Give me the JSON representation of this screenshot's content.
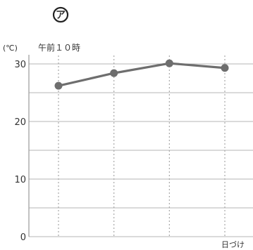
{
  "chart_data": {
    "type": "line",
    "panel_marker": "ア",
    "ylabel": "(℃)",
    "series_label": "午前１０時",
    "xlabel": "日づけ",
    "ylim": [
      0,
      30
    ],
    "y_ticks": [
      0,
      10,
      20,
      30
    ],
    "gridlines_every": 5,
    "grid": true,
    "x": [
      1,
      2,
      3,
      4
    ],
    "series": [
      {
        "values": [
          26.2,
          28.4,
          30.1,
          29.3
        ]
      }
    ],
    "line_color": "#6e6e6e",
    "point_color": "#6e6e6e"
  }
}
